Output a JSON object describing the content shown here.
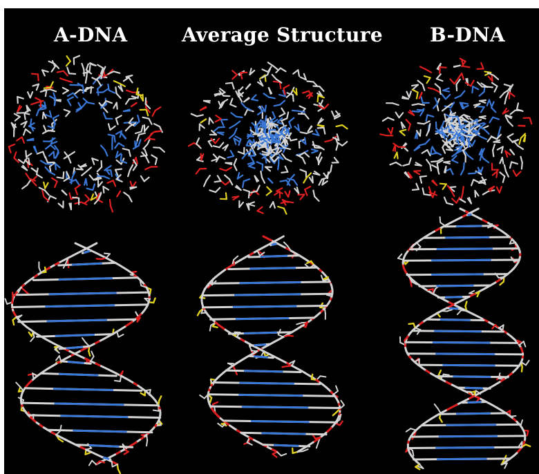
{
  "titles": {
    "a_dna": "A-DNA",
    "average": "Average Structure",
    "b_dna": "B-DNA"
  },
  "colors": {
    "background": "#000000",
    "carbon": "#d4d4d4",
    "nitrogen": "#3a78d8",
    "oxygen": "#e02020",
    "phosphorus": "#e0d020"
  },
  "structures": [
    {
      "name": "A-DNA",
      "top_view": "hollow-ring",
      "side_view": "wide-tilted-helix"
    },
    {
      "name": "Average Structure",
      "top_view": "partially-filled-ring",
      "side_view": "intermediate-helix"
    },
    {
      "name": "B-DNA",
      "top_view": "filled-core",
      "side_view": "narrow-helix"
    }
  ]
}
